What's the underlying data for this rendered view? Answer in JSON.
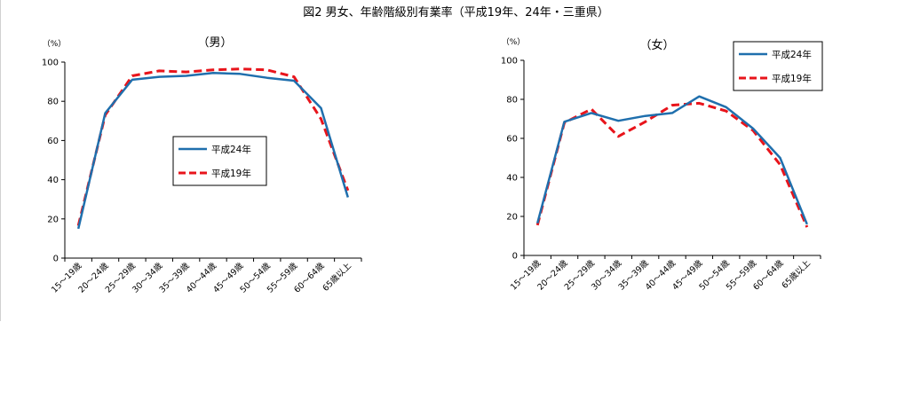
{
  "figure_title": "図2 男女、年齢階級別有業率（平成19年、24年・三重県）",
  "chart_data": [
    {
      "type": "line",
      "title": "（男）",
      "ylabel": "（%）",
      "ylim": [
        0,
        100
      ],
      "yticks": [
        0,
        20,
        40,
        60,
        80,
        100
      ],
      "categories": [
        "15～19歳",
        "20～24歳",
        "25～29歳",
        "30～34歳",
        "35～39歳",
        "40～44歳",
        "45～49歳",
        "50～54歳",
        "55～59歳",
        "60～64歳",
        "65歳以上"
      ],
      "series": [
        {
          "name": "平成24年",
          "color": "#1f6fad",
          "dash": "solid",
          "values": [
            15,
            74,
            91,
            92.5,
            93,
            94.5,
            94,
            92,
            90.5,
            76.5,
            31
          ]
        },
        {
          "name": "平成19年",
          "color": "#e8141b",
          "dash": "dashed",
          "values": [
            16.5,
            73,
            93,
            95.5,
            95,
            96,
            96.5,
            96,
            92.5,
            71,
            34.5
          ]
        }
      ],
      "legend_position": "center-right",
      "grid": false
    },
    {
      "type": "line",
      "title": "（女）",
      "ylabel": "（%）",
      "ylim": [
        0,
        100
      ],
      "yticks": [
        0,
        20,
        40,
        60,
        80,
        100
      ],
      "categories": [
        "15～19歳",
        "20～24歳",
        "25～29歳",
        "30～34歳",
        "35～39歳",
        "40～44歳",
        "45～49歳",
        "50～54歳",
        "55～59歳",
        "60～64歳",
        "65歳以上"
      ],
      "series": [
        {
          "name": "平成24年",
          "color": "#1f6fad",
          "dash": "solid",
          "values": [
            16.5,
            68.5,
            73,
            69,
            71.5,
            73,
            81.5,
            76,
            65,
            50,
            16
          ]
        },
        {
          "name": "平成19年",
          "color": "#e8141b",
          "dash": "dashed",
          "values": [
            15.5,
            68,
            75,
            61,
            68.5,
            77,
            78,
            74,
            64,
            46.5,
            14.5
          ]
        }
      ],
      "legend_position": "top-right",
      "grid": false
    }
  ]
}
